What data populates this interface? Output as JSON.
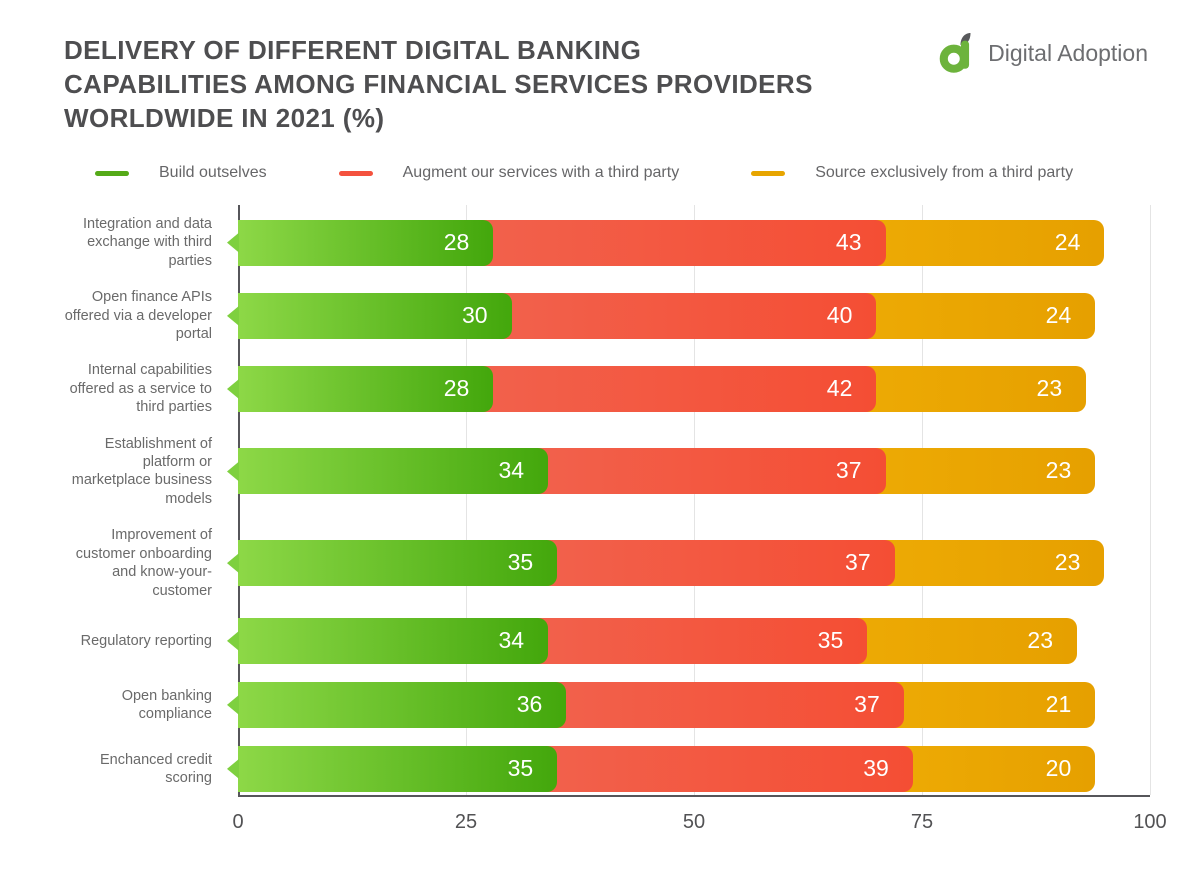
{
  "header": {
    "title_lines": [
      "DELIVERY OF DIFFERENT DIGITAL BANKING",
      "CAPABILITIES AMONG FINANCIAL SERVICES PROVIDERS",
      "WORLDWIDE IN 2021 (%)"
    ],
    "logo_text": "Digital Adoption",
    "logo_green": "#6db33c",
    "logo_gray": "#58595b"
  },
  "legend": [
    {
      "label": "Build outselves",
      "color": "#55aa18"
    },
    {
      "label": "Augment our services with a third party",
      "color": "#f4523e"
    },
    {
      "label": "Source exclusively from a third party",
      "color": "#e7a500"
    }
  ],
  "chart_data": {
    "type": "bar",
    "stacked": true,
    "orientation": "horizontal",
    "title": "Delivery of different digital banking capabilities among financial services providers worldwide in 2021 (%)",
    "categories": [
      "Integration and data exchange with third parties",
      "Open finance APIs offered via a developer portal",
      "Internal capabilities offered as a service to third parties",
      "Establishment of platform or marketplace business models",
      "Improvement of customer onboarding and know-your-customer",
      "Regulatory reporting",
      "Open banking compliance",
      "Enchanced credit scoring"
    ],
    "series": [
      {
        "name": "Build outselves",
        "key": "build-ourselves",
        "gradient": [
          "#8dd847",
          "#43a70c"
        ],
        "values": [
          28,
          30,
          28,
          34,
          35,
          34,
          36,
          35
        ]
      },
      {
        "name": "Augment our services with a third party",
        "key": "augment-third-party",
        "gradient": [
          "#f2614c",
          "#f44e34"
        ],
        "values": [
          43,
          40,
          42,
          37,
          37,
          35,
          37,
          39
        ]
      },
      {
        "name": "Source exclusively from a third party",
        "key": "source-third-party",
        "gradient": [
          "#edaa04",
          "#e6a000"
        ],
        "values": [
          24,
          24,
          23,
          23,
          23,
          23,
          21,
          20
        ]
      }
    ],
    "xticks": [
      0,
      25,
      50,
      75,
      100
    ],
    "xlim": [
      0,
      100
    ],
    "grid": "vertical",
    "legend_position": "top"
  }
}
